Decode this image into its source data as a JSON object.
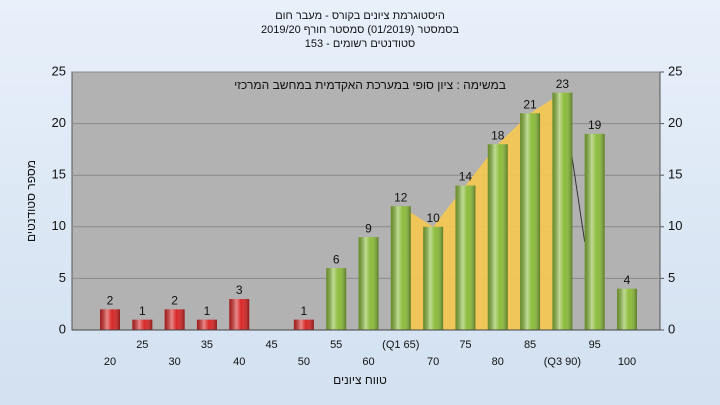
{
  "chart_data": {
    "type": "bar",
    "title": "היסטוגרמת ציונים בקורס - מעבר חום",
    "subtitle": "בסמסטר  (01/2019)  סמסטר חורף 2019/20",
    "subtitle2": "סטודנטים רשומים - 153",
    "annotation": "במשימה : ציון סופי במערכת האקדמית במחשב המרכזי",
    "x_label": "טווח ציונים",
    "y_label": "מספר סטודנטים",
    "categories": [
      "20",
      "25",
      "30",
      "35",
      "40",
      "45",
      "50",
      "55",
      "60",
      "(Q1 65)",
      "70",
      "75",
      "80",
      "85",
      "(Q3 90)",
      "95",
      "100"
    ],
    "values": [
      2,
      1,
      2,
      1,
      3,
      null,
      1,
      6,
      9,
      12,
      10,
      14,
      18,
      21,
      23,
      19,
      4
    ],
    "colors": [
      "#d82828",
      "#d82828",
      "#d82828",
      "#d82828",
      "#d82828",
      "#d82828",
      "#d82828",
      "#8cbc3c",
      "#8cbc3c",
      "#8cbc3c",
      "#8cbc3c",
      "#8cbc3c",
      "#8cbc3c",
      "#8cbc3c",
      "#8cbc3c",
      "#8cbc3c",
      "#8cbc3c"
    ],
    "ylim": [
      0,
      25
    ],
    "yticks": [
      0,
      5,
      10,
      15,
      20,
      25
    ],
    "y2lim": [
      0,
      25
    ],
    "y2ticks": [
      0,
      5,
      10,
      15,
      20,
      25
    ],
    "grid": true
  }
}
